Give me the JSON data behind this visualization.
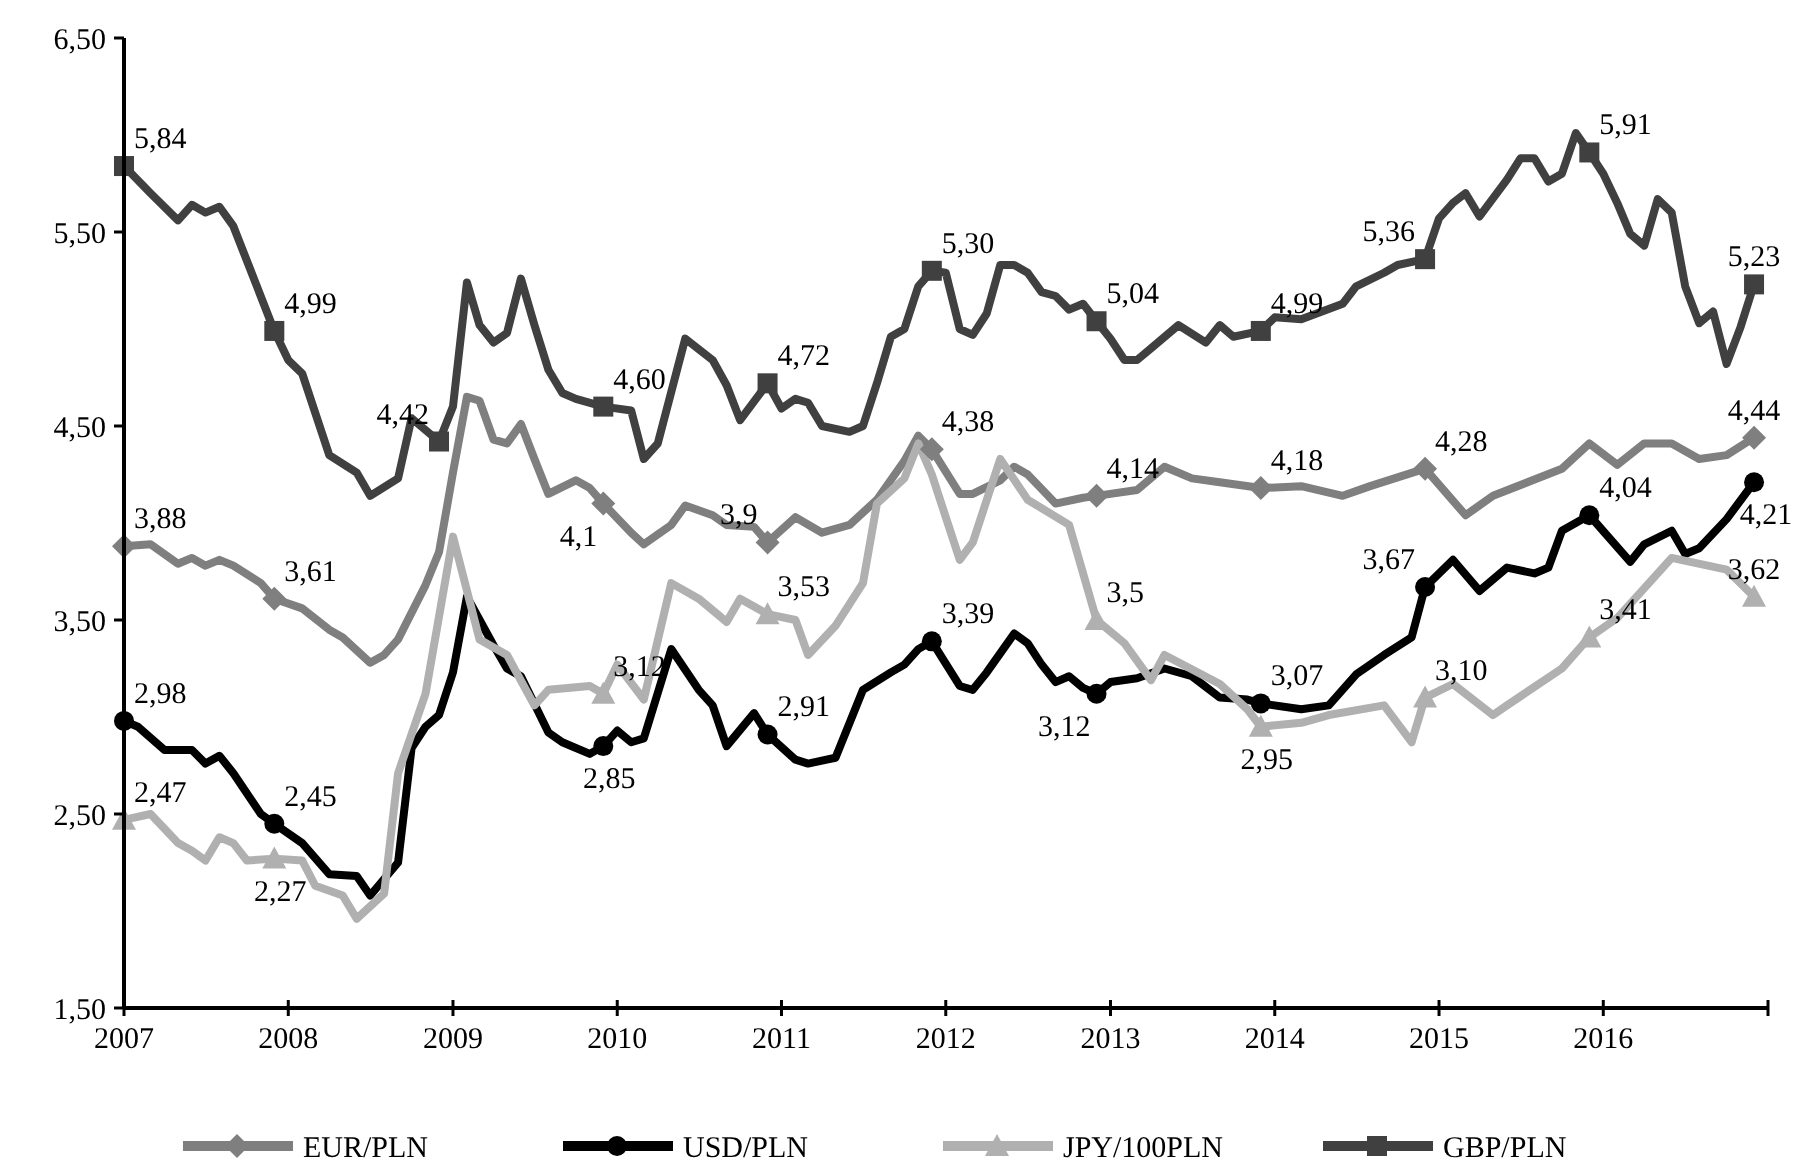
{
  "chart_data": {
    "type": "line",
    "xlim": [
      "2007-01",
      "2017-01"
    ],
    "xticks": [
      "2007",
      "2008",
      "2009",
      "2010",
      "2011",
      "2012",
      "2013",
      "2014",
      "2015",
      "2016",
      {
        "value": "2017",
        "label": null
      }
    ],
    "ylim": [
      1.5,
      6.5
    ],
    "yticks": [
      {
        "value": 1.5,
        "label": "1,50"
      },
      {
        "value": 2.5,
        "label": "2,50"
      },
      {
        "value": 3.5,
        "label": "3,50"
      },
      {
        "value": 4.5,
        "label": "4,50"
      },
      {
        "value": 5.5,
        "label": "5,50"
      },
      {
        "value": 6.5,
        "label": "6,50"
      }
    ],
    "grid": false,
    "legend": "bottom",
    "line_style": "solid",
    "series": [
      {
        "name": "EUR/PLN",
        "color": "#7f7f7f",
        "x": [
          "2007-01",
          "2007-03",
          "2007-05",
          "2007-06",
          "2007-07",
          "2007-08",
          "2007-09",
          "2007-11",
          "2007-12",
          "2008-02",
          "2008-04",
          "2008-05",
          "2008-07",
          "2008-08",
          "2008-09",
          "2008-11",
          "2008-12",
          "2009-01",
          "2009-02",
          "2009-03",
          "2009-04",
          "2009-05",
          "2009-06",
          "2009-07",
          "2009-08",
          "2009-10",
          "2009-11",
          "2009-12",
          "2010-02",
          "2010-03",
          "2010-05",
          "2010-06",
          "2010-08",
          "2010-09",
          "2010-11",
          "2010-12",
          "2011-02",
          "2011-04",
          "2011-06",
          "2011-08",
          "2011-10",
          "2011-11",
          "2011-12",
          "2012-02",
          "2012-03",
          "2012-05",
          "2012-06",
          "2012-07",
          "2012-09",
          "2012-11",
          "2012-12",
          "2013-03",
          "2013-05",
          "2013-07",
          "2013-09",
          "2013-12",
          "2014-03",
          "2014-06",
          "2014-08",
          "2014-12",
          "2015-03",
          "2015-05",
          "2015-10",
          "2015-12",
          "2016-02",
          "2016-04",
          "2016-06",
          "2016-08",
          "2016-10",
          "2016-12"
        ],
        "values": [
          3.88,
          3.89,
          3.79,
          3.82,
          3.78,
          3.81,
          3.78,
          3.69,
          3.61,
          3.56,
          3.45,
          3.41,
          3.28,
          3.32,
          3.4,
          3.68,
          3.85,
          4.26,
          4.65,
          4.63,
          4.43,
          4.41,
          4.51,
          4.33,
          4.15,
          4.22,
          4.18,
          4.1,
          3.95,
          3.89,
          3.99,
          4.09,
          4.04,
          3.99,
          3.98,
          3.9,
          4.03,
          3.95,
          3.99,
          4.12,
          4.32,
          4.45,
          4.38,
          4.15,
          4.15,
          4.22,
          4.29,
          4.25,
          4.1,
          4.13,
          4.14,
          4.17,
          4.29,
          4.23,
          4.21,
          4.18,
          4.19,
          4.14,
          4.19,
          4.28,
          4.04,
          4.14,
          4.28,
          4.41,
          4.3,
          4.41,
          4.41,
          4.33,
          4.35,
          4.44
        ]
      },
      {
        "name": "USD/PLN",
        "color": "#000000",
        "x": [
          "2007-01",
          "2007-02",
          "2007-04",
          "2007-06",
          "2007-07",
          "2007-08",
          "2007-09",
          "2007-11",
          "2007-12",
          "2008-02",
          "2008-04",
          "2008-06",
          "2008-07",
          "2008-09",
          "2008-10",
          "2008-11",
          "2008-12",
          "2009-01",
          "2009-02",
          "2009-04",
          "2009-05",
          "2009-06",
          "2009-08",
          "2009-09",
          "2009-11",
          "2009-12",
          "2010-01",
          "2010-02",
          "2010-03",
          "2010-05",
          "2010-07",
          "2010-08",
          "2010-09",
          "2010-11",
          "2010-12",
          "2011-02",
          "2011-03",
          "2011-05",
          "2011-07",
          "2011-09",
          "2011-10",
          "2011-11",
          "2011-12",
          "2012-02",
          "2012-03",
          "2012-04",
          "2012-06",
          "2012-07",
          "2012-08",
          "2012-09",
          "2012-10",
          "2012-11",
          "2012-12",
          "2013-01",
          "2013-03",
          "2013-05",
          "2013-07",
          "2013-09",
          "2013-11",
          "2013-12",
          "2014-03",
          "2014-05",
          "2014-07",
          "2014-09",
          "2014-11",
          "2014-12",
          "2015-02",
          "2015-04",
          "2015-06",
          "2015-08",
          "2015-09",
          "2015-10",
          "2015-12",
          "2016-03",
          "2016-04",
          "2016-06",
          "2016-07",
          "2016-08",
          "2016-10",
          "2016-12"
        ],
        "values": [
          2.98,
          2.95,
          2.83,
          2.83,
          2.76,
          2.8,
          2.71,
          2.5,
          2.45,
          2.35,
          2.19,
          2.18,
          2.08,
          2.25,
          2.84,
          2.95,
          3.01,
          3.23,
          3.62,
          3.37,
          3.25,
          3.21,
          2.92,
          2.87,
          2.81,
          2.85,
          2.93,
          2.87,
          2.89,
          3.35,
          3.14,
          3.06,
          2.85,
          3.02,
          2.91,
          2.78,
          2.76,
          2.79,
          3.14,
          3.23,
          3.27,
          3.35,
          3.39,
          3.16,
          3.14,
          3.23,
          3.43,
          3.38,
          3.27,
          3.18,
          3.21,
          3.15,
          3.12,
          3.18,
          3.2,
          3.25,
          3.21,
          3.1,
          3.09,
          3.07,
          3.04,
          3.06,
          3.22,
          3.32,
          3.41,
          3.67,
          3.81,
          3.65,
          3.77,
          3.74,
          3.77,
          3.96,
          4.04,
          3.8,
          3.89,
          3.96,
          3.84,
          3.87,
          4.02,
          4.21
        ]
      },
      {
        "name": "JPY/100PLN",
        "color": "#b0b0b0",
        "x": [
          "2007-01",
          "2007-03",
          "2007-05",
          "2007-06",
          "2007-07",
          "2007-08",
          "2007-09",
          "2007-10",
          "2007-12",
          "2008-02",
          "2008-03",
          "2008-05",
          "2008-06",
          "2008-08",
          "2008-09",
          "2008-11",
          "2009-01",
          "2009-03",
          "2009-05",
          "2009-07",
          "2009-08",
          "2009-11",
          "2009-12",
          "2010-01",
          "2010-03",
          "2010-05",
          "2010-07",
          "2010-09",
          "2010-10",
          "2010-12",
          "2011-02",
          "2011-03",
          "2011-05",
          "2011-07",
          "2011-08",
          "2011-10",
          "2011-11",
          "2011-12",
          "2012-02",
          "2012-03",
          "2012-05",
          "2012-07",
          "2012-10",
          "2012-12",
          "2013-02",
          "2013-04",
          "2013-05",
          "2013-09",
          "2013-11",
          "2013-12",
          "2014-03",
          "2014-05",
          "2014-09",
          "2014-11",
          "2014-12",
          "2015-02",
          "2015-05",
          "2015-06",
          "2015-10",
          "2015-12",
          "2016-02",
          "2016-06",
          "2016-10",
          "2016-12"
        ],
        "values": [
          2.47,
          2.5,
          2.35,
          2.31,
          2.26,
          2.38,
          2.35,
          2.26,
          2.27,
          2.26,
          2.13,
          2.08,
          1.96,
          2.09,
          2.71,
          3.12,
          3.93,
          3.4,
          3.32,
          3.06,
          3.14,
          3.16,
          3.12,
          3.27,
          3.09,
          3.69,
          3.61,
          3.49,
          3.61,
          3.53,
          3.5,
          3.32,
          3.47,
          3.69,
          4.1,
          4.23,
          4.41,
          4.25,
          3.81,
          3.9,
          4.33,
          4.12,
          3.99,
          3.5,
          3.38,
          3.19,
          3.32,
          3.17,
          3.04,
          2.95,
          2.97,
          3.01,
          3.06,
          2.87,
          3.1,
          3.17,
          3.01,
          3.06,
          3.25,
          3.41,
          3.51,
          3.82,
          3.76,
          3.62
        ]
      },
      {
        "name": "GBP/PLN",
        "color": "#404040",
        "x": [
          "2007-01",
          "2007-03",
          "2007-05",
          "2007-06",
          "2007-07",
          "2007-08",
          "2007-09",
          "2007-12",
          "2008-01",
          "2008-02",
          "2008-04",
          "2008-06",
          "2008-07",
          "2008-09",
          "2008-10",
          "2008-12",
          "2009-01",
          "2009-02",
          "2009-03",
          "2009-04",
          "2009-05",
          "2009-06",
          "2009-07",
          "2009-08",
          "2009-09",
          "2009-10",
          "2009-12",
          "2010-02",
          "2010-03",
          "2010-04",
          "2010-06",
          "2010-08",
          "2010-09",
          "2010-10",
          "2010-12",
          "2011-01",
          "2011-02",
          "2011-03",
          "2011-04",
          "2011-06",
          "2011-07",
          "2011-08",
          "2011-09",
          "2011-10",
          "2011-11",
          "2011-12",
          "2012-01",
          "2012-02",
          "2012-03",
          "2012-04",
          "2012-05",
          "2012-06",
          "2012-07",
          "2012-08",
          "2012-09",
          "2012-10",
          "2012-11",
          "2012-12",
          "2013-01",
          "2013-02",
          "2013-03",
          "2013-04",
          "2013-06",
          "2013-08",
          "2013-09",
          "2013-10",
          "2013-12",
          "2014-01",
          "2014-03",
          "2014-06",
          "2014-07",
          "2014-09",
          "2014-10",
          "2014-12",
          "2015-01",
          "2015-02",
          "2015-03",
          "2015-04",
          "2015-06",
          "2015-07",
          "2015-08",
          "2015-09",
          "2015-10",
          "2015-11",
          "2015-12",
          "2016-01",
          "2016-02",
          "2016-03",
          "2016-04",
          "2016-05",
          "2016-06",
          "2016-07",
          "2016-08",
          "2016-09",
          "2016-10",
          "2016-11",
          "2016-12"
        ],
        "values": [
          5.84,
          5.7,
          5.56,
          5.64,
          5.6,
          5.63,
          5.53,
          4.99,
          4.84,
          4.77,
          4.35,
          4.26,
          4.14,
          4.23,
          4.54,
          4.42,
          4.6,
          5.24,
          5.02,
          4.93,
          4.98,
          5.26,
          5.02,
          4.79,
          4.67,
          4.64,
          4.6,
          4.58,
          4.33,
          4.41,
          4.95,
          4.84,
          4.71,
          4.53,
          4.72,
          4.59,
          4.64,
          4.62,
          4.5,
          4.47,
          4.5,
          4.72,
          4.96,
          5.0,
          5.22,
          5.3,
          5.29,
          5.0,
          4.97,
          5.08,
          5.33,
          5.33,
          5.29,
          5.19,
          5.17,
          5.1,
          5.13,
          5.04,
          4.95,
          4.84,
          4.84,
          4.9,
          5.02,
          4.93,
          5.02,
          4.96,
          4.99,
          5.06,
          5.05,
          5.13,
          5.22,
          5.29,
          5.33,
          5.36,
          5.57,
          5.65,
          5.7,
          5.58,
          5.77,
          5.88,
          5.88,
          5.76,
          5.8,
          6.01,
          5.91,
          5.8,
          5.65,
          5.49,
          5.43,
          5.67,
          5.6,
          5.22,
          5.03,
          5.09,
          4.82,
          5.01,
          5.23
        ]
      },
      {
        "type": "scatter",
        "color": "#7f7f7f",
        "marker": "diamond",
        "x": [
          "2007-01",
          "2007-12",
          "2009-12",
          "2010-12",
          "2011-12",
          "2012-12",
          "2013-12",
          "2014-12",
          "2016-12"
        ],
        "values": [
          3.88,
          3.61,
          4.1,
          3.9,
          4.38,
          4.14,
          4.18,
          4.28,
          4.44
        ],
        "value_labels": [
          "3,88",
          "3,61",
          "4,1",
          "3,9",
          "4,38",
          "4,14",
          "4,18",
          "4,28",
          "4,44"
        ]
      },
      {
        "type": "scatter",
        "color": "#000000",
        "marker": "circle",
        "x": [
          "2007-01",
          "2007-12",
          "2009-12",
          "2010-12",
          "2011-12",
          "2012-12",
          "2013-12",
          "2014-12",
          "2015-12",
          "2016-12"
        ],
        "values": [
          2.98,
          2.45,
          2.85,
          2.91,
          3.39,
          3.12,
          3.07,
          3.67,
          4.04,
          4.21
        ],
        "value_labels": [
          "2,98",
          "2,45",
          "2,85",
          "2,91",
          "3,39",
          "3,12",
          "3,07",
          "3,67",
          "4,04",
          "4,21"
        ]
      },
      {
        "type": "scatter",
        "color": "#b0b0b0",
        "marker": "triangle",
        "x": [
          "2007-01",
          "2007-12",
          "2009-12",
          "2010-12",
          "2012-12",
          "2013-12",
          "2014-12",
          "2015-12",
          "2016-12"
        ],
        "values": [
          2.47,
          2.27,
          3.12,
          3.53,
          3.5,
          2.95,
          3.1,
          3.41,
          3.62
        ],
        "value_labels": [
          "2,47",
          "2,27",
          "3,12",
          "3,53",
          "3,5",
          "2,95",
          "3,10",
          "3,41",
          "3,62"
        ]
      },
      {
        "type": "scatter",
        "color": "#404040",
        "marker": "square",
        "x": [
          "2007-01",
          "2007-12",
          "2008-12",
          "2009-12",
          "2010-12",
          "2011-12",
          "2012-12",
          "2013-12",
          "2014-12",
          "2015-12",
          "2016-12"
        ],
        "values": [
          5.84,
          4.99,
          4.42,
          4.6,
          4.72,
          5.3,
          5.04,
          4.99,
          5.36,
          5.91,
          5.23
        ],
        "value_labels": [
          "5,84",
          "4,99",
          "4,42",
          "4,60",
          "4,72",
          "5,30",
          "5,04",
          "4,99",
          "5,36",
          "5,91",
          "5,23"
        ]
      }
    ]
  }
}
